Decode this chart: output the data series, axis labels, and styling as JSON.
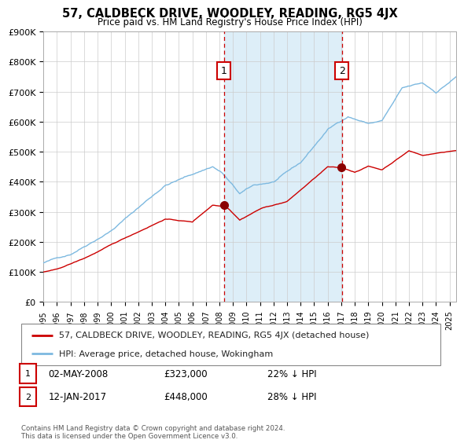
{
  "title": "57, CALDBECK DRIVE, WOODLEY, READING, RG5 4JX",
  "subtitle": "Price paid vs. HM Land Registry's House Price Index (HPI)",
  "ylim": [
    0,
    900000
  ],
  "yticks": [
    0,
    100000,
    200000,
    300000,
    400000,
    500000,
    600000,
    700000,
    800000,
    900000
  ],
  "ytick_labels": [
    "£0",
    "£100K",
    "£200K",
    "£300K",
    "£400K",
    "£500K",
    "£600K",
    "£700K",
    "£800K",
    "£900K"
  ],
  "hpi_color": "#7db9e0",
  "price_color": "#cc0000",
  "marker_color": "#8b0000",
  "background_color": "#ffffff",
  "shade_color": "#ddeef8",
  "sale1_date_num": 2008.33,
  "sale1_price": 323000,
  "sale1_label": "1",
  "sale1_display": "02-MAY-2008",
  "sale1_pct": "22% ↓ HPI",
  "sale2_date_num": 2017.04,
  "sale2_price": 448000,
  "sale2_label": "2",
  "sale2_display": "12-JAN-2017",
  "sale2_pct": "28% ↓ HPI",
  "legend_line1": "57, CALDBECK DRIVE, WOODLEY, READING, RG5 4JX (detached house)",
  "legend_line2": "HPI: Average price, detached house, Wokingham",
  "footnote": "Contains HM Land Registry data © Crown copyright and database right 2024.\nThis data is licensed under the Open Government Licence v3.0.",
  "xstart": 1995.0,
  "xend": 2025.5
}
